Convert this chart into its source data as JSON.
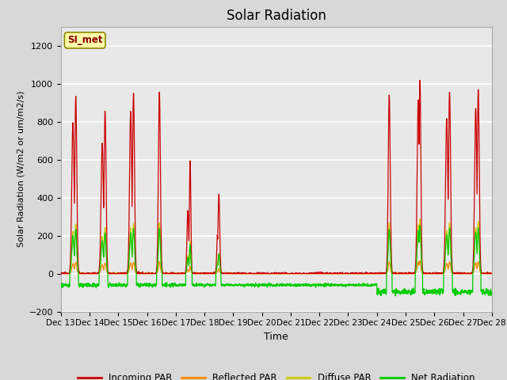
{
  "title": "Solar Radiation",
  "xlabel": "Time",
  "ylabel": "Solar Radiation (W/m2 or um/m2/s)",
  "ylim": [
    -200,
    1300
  ],
  "yticks": [
    -200,
    0,
    200,
    400,
    600,
    800,
    1000,
    1200
  ],
  "xlim": [
    0,
    15
  ],
  "station_label": "SI_met",
  "legend_entries": [
    "Incoming PAR",
    "Reflected PAR",
    "Diffuse PAR",
    "Net Radiation"
  ],
  "legend_colors": [
    "#cc0000",
    "#ff8800",
    "#cccc00",
    "#00cc00"
  ],
  "colors": {
    "incoming": "#cc0000",
    "reflected": "#ff8800",
    "diffuse": "#cccc00",
    "net": "#00cc00"
  },
  "xtick_labels": [
    "Dec 13",
    "Dec 14",
    "Dec 15",
    "Dec 16",
    "Dec 17",
    "Dec 18",
    "Dec 19",
    "Dec 20",
    "Dec 21",
    "Dec 22",
    "Dec 23",
    "Dec 24",
    "Dec 25",
    "Dec 26",
    "Dec 27",
    "Dec 28"
  ],
  "sunny_days": {
    "0": 935,
    "1": 860,
    "2": 950,
    "3": 955,
    "4": 600
  },
  "partly_days": {
    "4": 200,
    "5": 420
  },
  "clear_late": {
    "11": 940,
    "12": 1020,
    "13": 960,
    "14": 970
  },
  "net_early": -60,
  "net_cloudy": -60,
  "net_late": -95
}
